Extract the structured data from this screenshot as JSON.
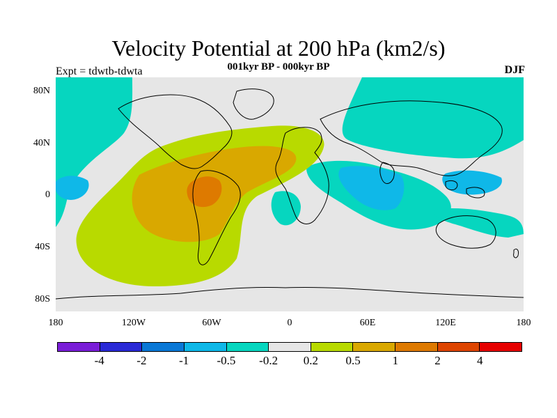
{
  "title": "Velocity Potential at 200 hPa (km2/s)",
  "subtitle": "001kyr BP - 000kyr BP",
  "left_label": "Expt = tdwtb-tdwta",
  "right_label": "DJF",
  "lat_ticks": [
    "80N",
    "40N",
    "0",
    "40S",
    "80S"
  ],
  "lon_ticks": [
    "180",
    "120W",
    "60W",
    "0",
    "60E",
    "120E",
    "180"
  ],
  "colorbar": {
    "colors": [
      "#7a1ed8",
      "#2a2ad6",
      "#0a78d6",
      "#0fb8e8",
      "#06d6bf",
      "#e6e6e6",
      "#b8da00",
      "#d9a800",
      "#de7a00",
      "#de4500",
      "#e60000"
    ],
    "labels": [
      "-4",
      "-2",
      "-1",
      "-0.5",
      "-0.2",
      "0.2",
      "0.5",
      "1",
      "2",
      "4"
    ]
  },
  "map": {
    "background": "#e6e6e6",
    "coastline_color": "#000000",
    "extent": {
      "lon": [
        -180,
        180
      ],
      "lat": [
        -90,
        90
      ]
    }
  }
}
